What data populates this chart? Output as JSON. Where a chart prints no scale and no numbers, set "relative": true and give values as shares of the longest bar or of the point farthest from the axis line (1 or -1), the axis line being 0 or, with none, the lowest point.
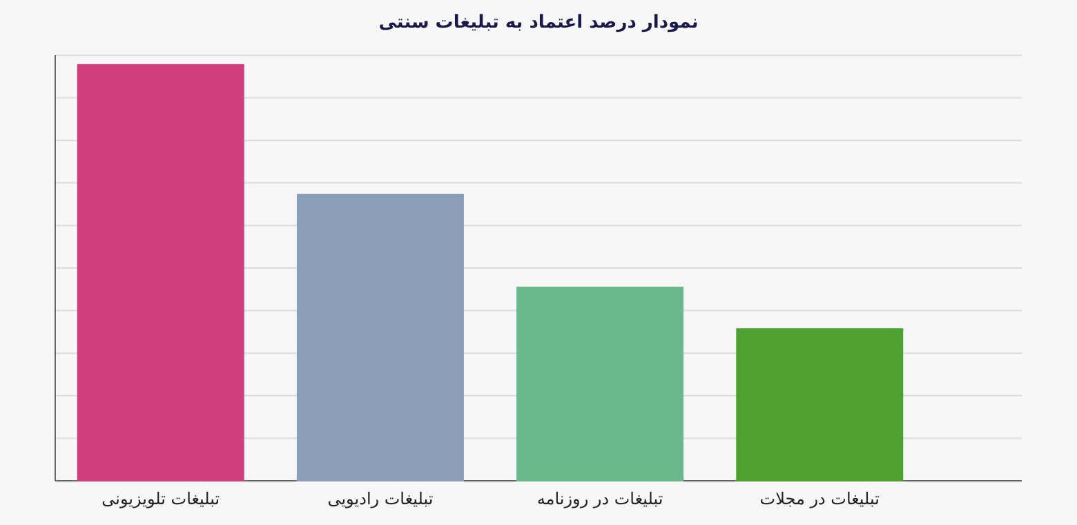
{
  "chart_data": {
    "type": "bar",
    "title": "نمودار درصد اعتماد به تبلیغات سنتی",
    "categories": [
      "تبلیغات تلویزیونی",
      "تبلیغات رادیویی",
      "تبلیغات در روزنامه",
      "تبلیغات در مجلات"
    ],
    "values": [
      1,
      0.688,
      0.465,
      0.365
    ],
    "colors": [
      "#d0407f",
      "#8a9fb5",
      "#6bb88a",
      "#4ea12e"
    ],
    "relative": true,
    "grid": "y"
  }
}
